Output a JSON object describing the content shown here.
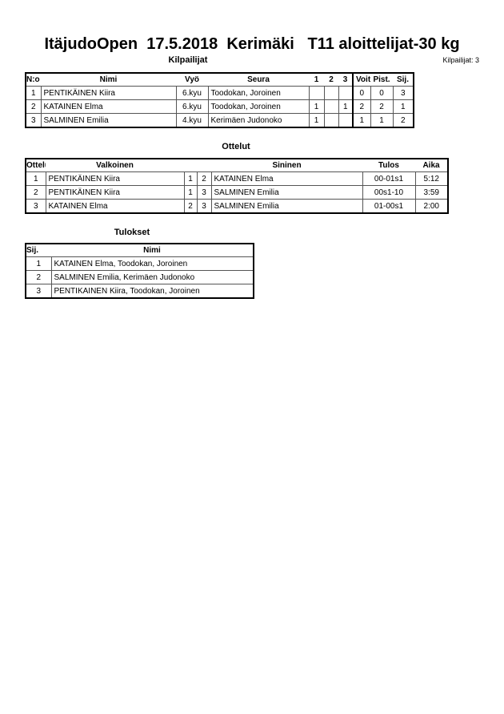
{
  "title": "ItäjudoOpen  17.5.2018  Kerimäki   T11 aloittelijat-30 kg",
  "competitors": {
    "heading": "Kilpailijat",
    "count_label": "Kilpailijat: 3",
    "columns": [
      "N:o",
      "Nimi",
      "Vyö",
      "Seura",
      "1",
      "2",
      "3",
      "Voit.",
      "Pist.",
      "Sij."
    ],
    "rows": [
      [
        "1",
        "PENTIKÄINEN Kiira",
        "6.kyu",
        "Toodokan, Joroinen",
        "",
        "",
        "",
        "0",
        "0",
        "3"
      ],
      [
        "2",
        "KATAINEN Elma",
        "6.kyu",
        "Toodokan, Joroinen",
        "1",
        "",
        "1",
        "2",
        "2",
        "1"
      ],
      [
        "3",
        "SALMINEN Emilia",
        "4.kyu",
        "Kerimäen Judonoko",
        "1",
        "",
        "",
        "1",
        "1",
        "2"
      ]
    ]
  },
  "matches": {
    "heading": "Ottelut",
    "columns": [
      "Ottelu",
      "Valkoinen",
      "",
      "",
      "Sininen",
      "Tulos",
      "Aika"
    ],
    "rows": [
      [
        "1",
        "PENTIKÄINEN Kiira",
        "1",
        "2",
        "KATAINEN Elma",
        "00-01s1",
        "5:12"
      ],
      [
        "2",
        "PENTIKÄINEN Kiira",
        "1",
        "3",
        "SALMINEN Emilia",
        "00s1-10",
        "3:59"
      ],
      [
        "3",
        "KATAINEN Elma",
        "2",
        "3",
        "SALMINEN Emilia",
        "01-00s1",
        "2:00"
      ]
    ]
  },
  "results": {
    "heading": "Tulokset",
    "columns": [
      "Sij.",
      "Nimi"
    ],
    "rows": [
      [
        "1",
        "KATAINEN Elma, Toodokan, Joroinen"
      ],
      [
        "2",
        "SALMINEN Emilia, Kerimäen Judonoko"
      ],
      [
        "3",
        "PENTIKAINEN Kiira, Toodokan, Joroinen"
      ]
    ]
  }
}
